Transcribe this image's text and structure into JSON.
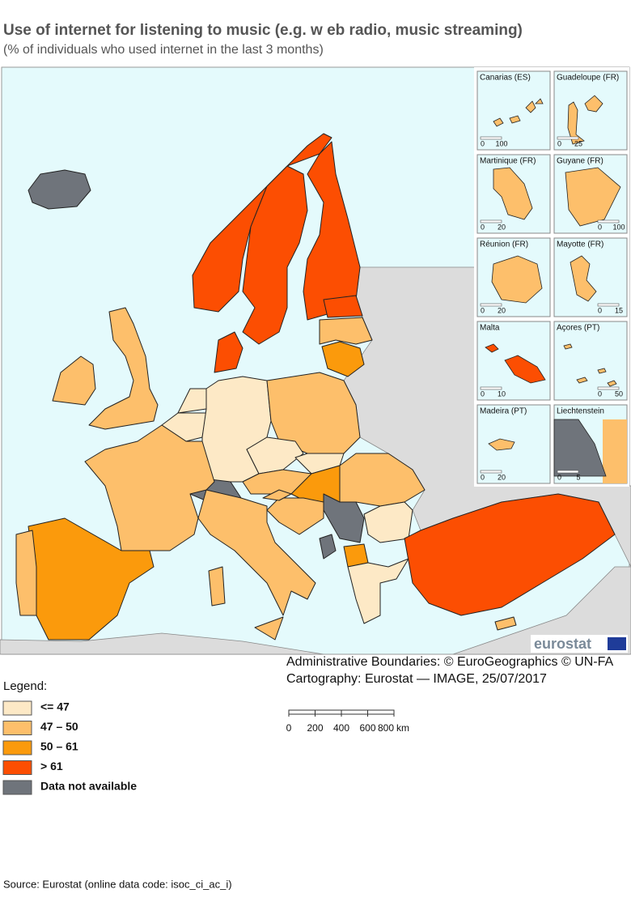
{
  "title": "Use of internet for listening to music (e.g. w eb radio, music streaming)",
  "subtitle": "(% of individuals who used internet in the last 3 months)",
  "insets": [
    {
      "name": "Canarias (ES)",
      "scale": [
        0,
        100
      ]
    },
    {
      "name": "Guadeloupe (FR)",
      "scale": [
        0,
        25
      ]
    },
    {
      "name": "Martinique (FR)",
      "scale": [
        0,
        20
      ]
    },
    {
      "name": "Guyane (FR)",
      "scale": [
        0,
        100
      ]
    },
    {
      "name": "Réunion (FR)",
      "scale": [
        0,
        20
      ]
    },
    {
      "name": "Mayotte (FR)",
      "scale": [
        0,
        15
      ]
    },
    {
      "name": "Malta",
      "scale": [
        0,
        10
      ]
    },
    {
      "name": "Açores (PT)",
      "scale": [
        0,
        50
      ]
    },
    {
      "name": "Madeira (PT)",
      "scale": [
        0,
        20
      ]
    },
    {
      "name": "Liechtenstein",
      "scale": [
        0,
        5
      ]
    }
  ],
  "logo": "eurostat",
  "credits": [
    "Administrative Boundaries: © EuroGeographics © UN-FA",
    "Cartography: Eurostat — IMAGE, 25/07/2017"
  ],
  "legend": {
    "title": "Legend:",
    "items": [
      {
        "label": "<= 47",
        "color": "#fde9c6"
      },
      {
        "label": "47 – 50",
        "color": "#fdbf6b"
      },
      {
        "label": "50 – 61",
        "color": "#fb9a0c"
      },
      {
        "label": "> 61",
        "color": "#fc4e02"
      },
      {
        "label": "Data not available",
        "color": "#6f747b"
      }
    ]
  },
  "scale_bar": {
    "ticks": [
      0,
      200,
      400,
      600,
      800
    ],
    "unit": "km"
  },
  "source": "Source: Eurostat (online data code: isoc_ci_ac_i)"
}
